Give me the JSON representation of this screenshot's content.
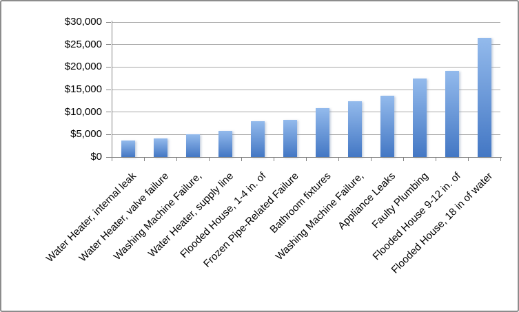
{
  "chart_data": {
    "type": "bar",
    "title": "",
    "xlabel": "",
    "ylabel": "",
    "legend": "none",
    "grid": "horizontal",
    "ylim": [
      0,
      30000
    ],
    "ytick_values": [
      0,
      5000,
      10000,
      15000,
      20000,
      25000,
      30000
    ],
    "ytick_labels": [
      "$0",
      "$5,000",
      "$10,000",
      "$15,000",
      "$20,000",
      "$25,000",
      "$30,000"
    ],
    "categories": [
      "Water Heater, internal leak",
      "Water Heater, valve failure",
      "Washing Machine Failure,",
      "Water Heater, supply line",
      "Flooded House, 1-4 in. of",
      "Frozen Pipe-Related Failure",
      "Bathroom fixtures",
      "Washing Machine Failure,",
      "Appliance Leaks",
      "Faulty Plumbing",
      "Flooded House 9-12 in. of",
      "Flooded House, 18 in of water"
    ],
    "values": [
      3600,
      4200,
      5000,
      5800,
      7900,
      8200,
      10900,
      12400,
      13600,
      17400,
      19100,
      26500
    ],
    "colors": {
      "bar_gradient_top": "#93baec",
      "bar_gradient_bottom": "#4377c4",
      "gridline": "#a6a6a6",
      "axis": "#808080",
      "frame_border": "#8c8c8c",
      "background": "#ffffff",
      "text": "#000000"
    }
  }
}
